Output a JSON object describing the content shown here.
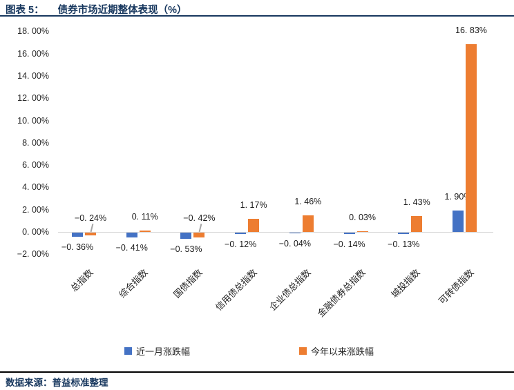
{
  "header": {
    "label": "图表 5：",
    "title": "债券市场近期整体表现（%）"
  },
  "footer": {
    "source": "数据来源：普益标准整理"
  },
  "legend": [
    {
      "name": "近一月涨跌幅",
      "color": "#4472C4"
    },
    {
      "name": "今年以来涨跌幅",
      "color": "#ED7D31"
    }
  ],
  "chart_data": {
    "type": "bar",
    "title": "债券市场近期整体表现（%）",
    "categories": [
      "总指数",
      "综合指数",
      "国债指数",
      "信用债总指数",
      "企业债总指数",
      "金融债券总指数",
      "城投指数",
      "可转债指数"
    ],
    "series": [
      {
        "name": "近一月涨跌幅",
        "color": "#4472C4",
        "values": [
          -0.36,
          -0.41,
          -0.53,
          -0.12,
          -0.04,
          -0.14,
          -0.13,
          1.9
        ]
      },
      {
        "name": "今年以来涨跌幅",
        "color": "#ED7D31",
        "values": [
          -0.24,
          0.11,
          -0.42,
          1.17,
          1.46,
          0.03,
          1.43,
          16.83
        ]
      }
    ],
    "data_labels": {
      "近一月涨跌幅": [
        "−0. 36%",
        "−0. 41%",
        "−0. 53%",
        "−0. 12%",
        "−0. 04%",
        "−0. 14%",
        "−0. 13%",
        "1. 90%"
      ],
      "今年以来涨跌幅": [
        "−0. 24%",
        "0. 11%",
        "−0. 42%",
        "1. 17%",
        "1. 46%",
        "0. 03%",
        "1. 43%",
        "16. 83%"
      ]
    },
    "ylabel": "",
    "xlabel": "",
    "ylim": [
      -2,
      18
    ],
    "y_tick_step": 2,
    "y_tick_labels": [
      "18. 00%",
      "16. 00%",
      "14. 00%",
      "12. 00%",
      "10. 00%",
      "8. 00%",
      "6. 00%",
      "4. 00%",
      "2. 00%",
      "0. 00%",
      "−2. 00%"
    ],
    "grid": false,
    "legend_position": "bottom",
    "axis_line_color": "#D6D6D6",
    "leader_line_categories": [
      "总指数",
      "国债指数"
    ]
  }
}
